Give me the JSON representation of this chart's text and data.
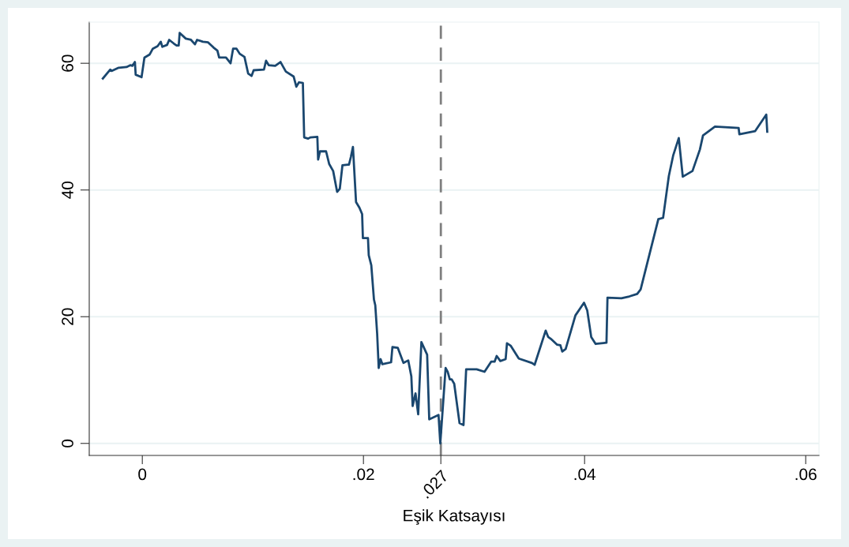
{
  "chart_data": {
    "type": "line",
    "xlabel": "Eşik Katsayısı",
    "x": [
      -0.00357,
      -0.0029,
      -0.00275,
      -0.00214,
      -0.00143,
      -0.00107,
      -0.0009,
      -0.00067,
      -0.0006,
      -7e-05,
      0.00019,
      0.00067,
      0.00095,
      0.00138,
      0.00167,
      0.00181,
      0.00224,
      0.00243,
      0.00286,
      0.0031,
      0.00329,
      0.00338,
      0.00393,
      0.0044,
      0.00476,
      0.00495,
      0.00548,
      0.00595,
      0.00643,
      0.00679,
      0.00695,
      0.00757,
      0.00798,
      0.00821,
      0.00852,
      0.00881,
      0.00924,
      0.00957,
      0.00988,
      0.01007,
      0.011,
      0.01119,
      0.01143,
      0.01202,
      0.0125,
      0.01298,
      0.01369,
      0.01393,
      0.01417,
      0.01452,
      0.01464,
      0.015,
      0.01519,
      0.01583,
      0.0159,
      0.01607,
      0.01662,
      0.0169,
      0.01726,
      0.01762,
      0.01786,
      0.0181,
      0.01857,
      0.01869,
      0.01886,
      0.01905,
      0.01933,
      0.01964,
      0.01988,
      0.01995,
      0.02041,
      0.02048,
      0.02071,
      0.02095,
      0.02107,
      0.02124,
      0.02138,
      0.02155,
      0.02171,
      0.0225,
      0.02262,
      0.0231,
      0.02362,
      0.02405,
      0.02433,
      0.02445,
      0.02471,
      0.02495,
      0.02524,
      0.02576,
      0.02595,
      0.02679,
      0.02695,
      0.02743,
      0.02762,
      0.02781,
      0.02798,
      0.02821,
      0.02869,
      0.02905,
      0.02929,
      0.03024,
      0.03095,
      0.03155,
      0.03186,
      0.03205,
      0.03238,
      0.03286,
      0.03298,
      0.03333,
      0.03405,
      0.03524,
      0.03548,
      0.03648,
      0.03671,
      0.03695,
      0.0375,
      0.03781,
      0.03798,
      0.03829,
      0.03917,
      0.03995,
      0.04024,
      0.0406,
      0.041,
      0.04198,
      0.04207,
      0.04333,
      0.04405,
      0.04476,
      0.04507,
      0.04667,
      0.0471,
      0.04762,
      0.04802,
      0.04852,
      0.04888,
      0.04976,
      0.05043,
      0.05071,
      0.05179,
      0.05393,
      0.054,
      0.05543,
      0.05643,
      0.05652
    ],
    "series": [
      {
        "color": "#1a476f",
        "values": [
          57.6,
          59.0,
          58.8,
          59.3,
          59.4,
          59.7,
          59.6,
          60.2,
          58.2,
          57.8,
          60.9,
          61.4,
          62.3,
          62.7,
          63.4,
          62.6,
          62.9,
          63.7,
          63.1,
          62.8,
          62.8,
          64.8,
          63.9,
          63.7,
          63.0,
          63.7,
          63.4,
          63.3,
          62.5,
          62.0,
          60.9,
          60.9,
          60.0,
          62.3,
          62.3,
          61.5,
          61.0,
          58.4,
          58.0,
          58.9,
          59.0,
          60.4,
          59.7,
          59.6,
          60.2,
          58.7,
          57.9,
          56.3,
          57.0,
          56.9,
          48.3,
          48.1,
          48.3,
          48.4,
          44.8,
          46.1,
          46.1,
          44.1,
          43.0,
          39.7,
          40.2,
          43.9,
          44.0,
          44.0,
          45.2,
          46.8,
          38.1,
          37.2,
          36.2,
          32.4,
          32.4,
          29.7,
          28.1,
          22.7,
          21.8,
          17.3,
          11.9,
          13.3,
          12.5,
          12.8,
          15.2,
          15.1,
          12.7,
          13.1,
          10.6,
          5.9,
          7.9,
          4.6,
          16.0,
          14.0,
          3.8,
          4.5,
          0.0,
          11.9,
          11.3,
          10.1,
          10.1,
          9.4,
          3.2,
          2.9,
          11.7,
          11.7,
          11.3,
          12.9,
          12.9,
          13.8,
          13.0,
          13.3,
          15.8,
          15.4,
          13.4,
          12.7,
          12.4,
          17.8,
          16.8,
          16.5,
          15.6,
          15.5,
          14.5,
          14.9,
          20.2,
          22.2,
          21.0,
          16.8,
          15.7,
          15.9,
          23.0,
          22.9,
          23.2,
          23.6,
          24.3,
          35.4,
          35.6,
          42.2,
          45.5,
          48.2,
          42.1,
          43.0,
          46.4,
          48.6,
          50.0,
          49.8,
          48.8,
          49.3,
          51.9,
          49.2
        ]
      }
    ],
    "xlim": [
      -0.0048,
      0.0612
    ],
    "ylim": [
      -1.9,
      66.5
    ],
    "xticks": [
      0,
      {
        "value": 0.02,
        "label": ".02"
      },
      {
        "value": 0.027,
        "label": null
      },
      {
        "value": 0.04,
        "label": ".04"
      },
      {
        "value": 0.06,
        "label": ".06"
      }
    ],
    "yticks": [
      0,
      20,
      40,
      60
    ],
    "grid": "y",
    "line_style": "solid",
    "marker": "none",
    "ref_lines": [
      {
        "axis": "x",
        "value": 0.027,
        "color": "#7f7f7f",
        "line_style": "dashed",
        "label": ".027"
      }
    ]
  }
}
